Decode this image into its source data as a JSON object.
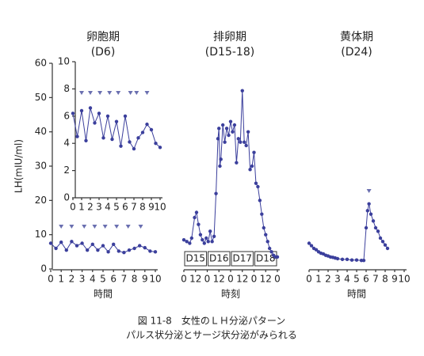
{
  "chart_data": [
    {
      "type": "line",
      "title": "卵胞期",
      "subtitle": "(D6)",
      "ylabel": "LH(mIU/ml)",
      "xlabel": "時間",
      "x": [
        0,
        0.5,
        1,
        1.5,
        2,
        2.5,
        3,
        3.5,
        4,
        4.5,
        5,
        5.5,
        6,
        6.5,
        7,
        7.5,
        8,
        8.5,
        9,
        9.5,
        10
      ],
      "values": [
        7.5,
        6.0,
        7.8,
        5.5,
        8.0,
        6.8,
        7.5,
        5.5,
        7.2,
        5.5,
        6.8,
        5.0,
        7.2,
        5.2,
        4.8,
        5.5,
        6.0,
        6.8,
        6.2,
        5.2,
        5.0
      ],
      "pulses": [
        1,
        2,
        3.2,
        4.2,
        5.2,
        6.3,
        7.4,
        8.6
      ],
      "xlim": [
        0,
        10
      ],
      "xticks": [
        0,
        1,
        2,
        3,
        4,
        5,
        6,
        7,
        8,
        9,
        10
      ],
      "ylim": [
        0,
        60
      ],
      "yticks": [
        0,
        10,
        20,
        30,
        40,
        50,
        60
      ],
      "color": "#3b3f9c"
    },
    {
      "type": "line",
      "x": [
        0,
        0.5,
        1,
        1.5,
        2,
        2.5,
        3,
        3.5,
        4,
        4.5,
        5,
        5.5,
        6,
        6.5,
        7,
        7.5,
        8,
        8.5,
        9,
        9.5,
        10
      ],
      "values": [
        6.2,
        4.5,
        6.4,
        4.2,
        6.6,
        5.5,
        6.2,
        4.4,
        6.0,
        4.3,
        5.6,
        3.8,
        6.0,
        4.1,
        3.6,
        4.4,
        4.8,
        5.4,
        5.0,
        4.0,
        3.7
      ],
      "pulses": [
        1,
        2,
        3.1,
        4.2,
        5.2,
        6.6,
        7.3,
        8.5
      ],
      "xlim": [
        0,
        10
      ],
      "xticks": [
        0,
        1,
        2,
        3,
        4,
        5,
        6,
        7,
        8,
        9,
        10
      ],
      "ylim": [
        0,
        10
      ],
      "yticks": [
        0,
        2,
        4,
        6,
        8,
        10
      ],
      "color": "#3b3f9c"
    },
    {
      "type": "line",
      "title": "排卵期",
      "subtitle": "(D15-18)",
      "xlabel": "時刻",
      "annotations": [
        "D15",
        "D16",
        "D17",
        "D18"
      ],
      "x": [
        0,
        3,
        6,
        8,
        11,
        13,
        15,
        17,
        19,
        21,
        23,
        25,
        27,
        29,
        31,
        33,
        35,
        36,
        37,
        38,
        40,
        42,
        44,
        46,
        48,
        50,
        52,
        54,
        56,
        58,
        60,
        62,
        64,
        66,
        68,
        70,
        72,
        74,
        76,
        78,
        80,
        82,
        84,
        86,
        88,
        90,
        92,
        94,
        96
      ],
      "values": [
        8.5,
        8,
        7.5,
        9,
        15,
        16.5,
        13,
        10,
        8.5,
        7.5,
        9,
        8,
        11,
        8,
        9.5,
        22,
        38,
        41,
        30,
        32,
        42,
        37,
        41,
        39,
        43,
        40,
        42,
        31,
        38,
        37,
        52,
        37,
        36,
        40,
        29,
        30,
        34,
        25,
        24,
        20,
        16,
        12,
        10,
        8,
        6,
        5,
        4,
        3.5,
        3.5
      ],
      "xlim": [
        0,
        96
      ],
      "xticks": [
        {
          "value": 0,
          "label": "0"
        },
        {
          "value": 12,
          "label": "12"
        },
        {
          "value": 24,
          "label": "0"
        },
        {
          "value": 36,
          "label": "12"
        },
        {
          "value": 48,
          "label": "0"
        },
        {
          "value": 60,
          "label": "12"
        },
        {
          "value": 72,
          "label": "0"
        },
        {
          "value": 84,
          "label": "12"
        },
        {
          "value": 96,
          "label": "0"
        }
      ],
      "ylim": [
        0,
        60
      ],
      "color": "#3b3f9c"
    },
    {
      "type": "line",
      "title": "黄体期",
      "subtitle": "(D24)",
      "xlabel": "時間",
      "x": [
        0,
        0.25,
        0.5,
        0.75,
        1,
        1.25,
        1.5,
        1.75,
        2,
        2.25,
        2.5,
        2.75,
        3,
        3.5,
        4,
        4.5,
        5,
        5.5,
        5.75,
        6,
        6.15,
        6.3,
        6.5,
        6.75,
        7,
        7.25,
        7.5,
        7.75,
        8,
        8.25
      ],
      "values": [
        7.5,
        6.8,
        6,
        5.6,
        5,
        4.6,
        4.4,
        4,
        3.8,
        3.5,
        3.4,
        3.2,
        3,
        2.8,
        2.8,
        2.6,
        2.6,
        2.5,
        2.5,
        12,
        17,
        19,
        16,
        14,
        12,
        11,
        9,
        8,
        7,
        6
      ],
      "pulses": [
        6.3
      ],
      "xlim": [
        0,
        10
      ],
      "xticks": [
        0,
        1,
        2,
        3,
        4,
        5,
        6,
        7,
        8,
        9,
        10
      ],
      "ylim": [
        0,
        60
      ],
      "color": "#3b3f9c"
    }
  ],
  "caption": [
    "図 11-8　女性のＬＨ分泌パターン",
    "パルス状分泌とサージ状分泌がみられる"
  ]
}
